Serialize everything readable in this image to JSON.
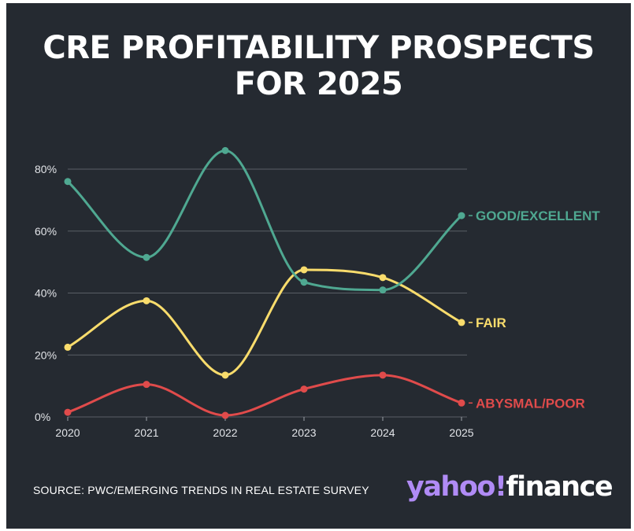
{
  "title": "CRE PROFITABILITY PROSPECTS FOR 2025",
  "source": "SOURCE: PWC/EMERGING TRENDS IN REAL ESTATE SURVEY",
  "logo": {
    "part1": "yahoo!",
    "part2": "finance"
  },
  "colors": {
    "background": "#252a31",
    "grid": "#5a5f66",
    "logo_accent": "#b08bf5"
  },
  "chart_data": {
    "type": "line",
    "x": [
      "2020",
      "2021",
      "2022",
      "2023",
      "2024",
      "2025"
    ],
    "ylim": [
      0,
      80
    ],
    "y_ticks": [
      "0%",
      "20%",
      "40%",
      "60%",
      "80%"
    ],
    "grid": true,
    "legend": "end-of-line labels",
    "series": [
      {
        "name": "GOOD/EXCELLENT",
        "color": "#4fa891",
        "values": [
          76,
          51.5,
          86,
          43.5,
          41,
          65
        ]
      },
      {
        "name": "FAIR",
        "color": "#f9dc6c",
        "values": [
          22.5,
          37.5,
          13.5,
          47.5,
          45,
          30.5
        ]
      },
      {
        "name": "ABYSMAL/POOR",
        "color": "#e04b4b",
        "values": [
          1.5,
          10.5,
          0.5,
          9,
          13.5,
          4.5
        ]
      }
    ]
  }
}
